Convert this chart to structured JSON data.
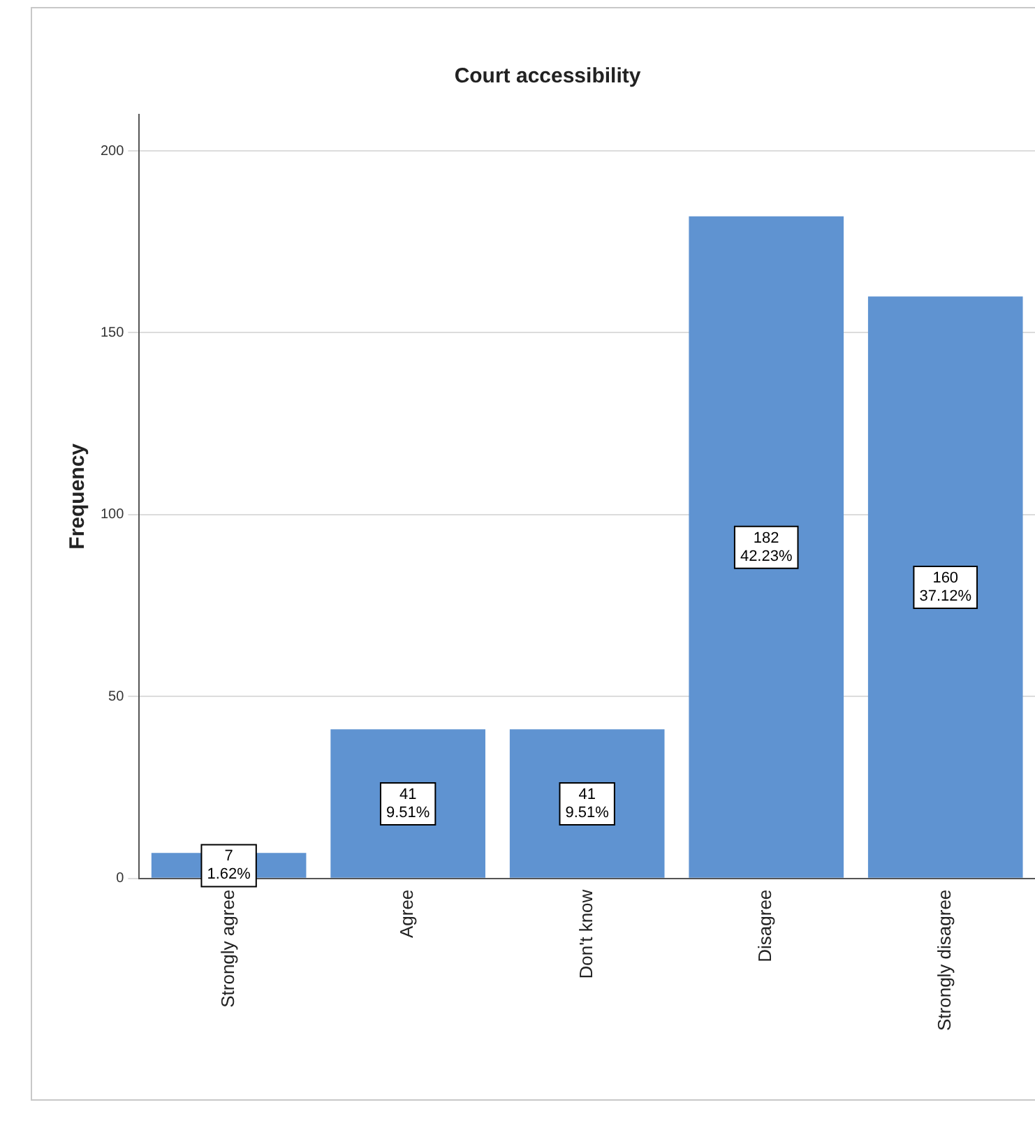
{
  "chart_data": {
    "type": "bar",
    "title": "Court accessibility",
    "ylabel": "Frequency",
    "categories": [
      "Strongly agree",
      "Agree",
      "Don't know",
      "Disagree",
      "Strongly disagree"
    ],
    "values": [
      7,
      41,
      41,
      182,
      160
    ],
    "value_labels": [
      "7\n1.62%",
      "41\n9.51%",
      "41\n9.51%",
      "182\n42.23%",
      "160\n37.12%"
    ],
    "color": "#5f93d1",
    "ylim": [
      0,
      210
    ],
    "yticks": [
      0,
      50,
      100,
      150,
      200
    ],
    "grid": "y"
  }
}
